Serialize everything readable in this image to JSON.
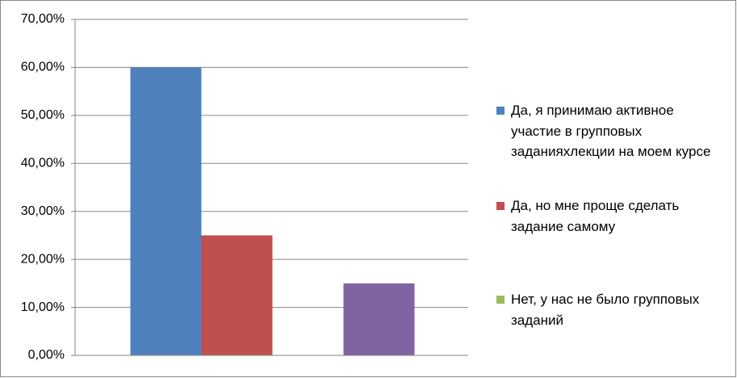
{
  "chart_data": {
    "type": "bar",
    "series": [
      {
        "name": "Да, я принимаю активное участие в групповых заданияхлекции на моем курсе",
        "color": "#4f81bd",
        "values": [
          60
        ]
      },
      {
        "name": "Да, но мне проще сделать задание самому",
        "color": "#c0504d",
        "values": [
          25
        ]
      },
      {
        "name": "Нет, у нас не было групповых заданий",
        "color": "#9bbb59",
        "values": [
          0
        ]
      },
      {
        "name": null,
        "color": "#8064a2",
        "values": [
          15
        ]
      }
    ],
    "ylim": [
      0,
      70
    ],
    "yticks": [
      {
        "value": 0,
        "label": "0,00%"
      },
      {
        "value": 10,
        "label": "10,00%"
      },
      {
        "value": 20,
        "label": "20,00%"
      },
      {
        "value": 30,
        "label": "30,00%"
      },
      {
        "value": 40,
        "label": "40,00%"
      },
      {
        "value": 50,
        "label": "50,00%"
      },
      {
        "value": 60,
        "label": "60,00%"
      },
      {
        "value": 70,
        "label": "70,00%"
      }
    ],
    "grid": true,
    "legend": "right"
  }
}
